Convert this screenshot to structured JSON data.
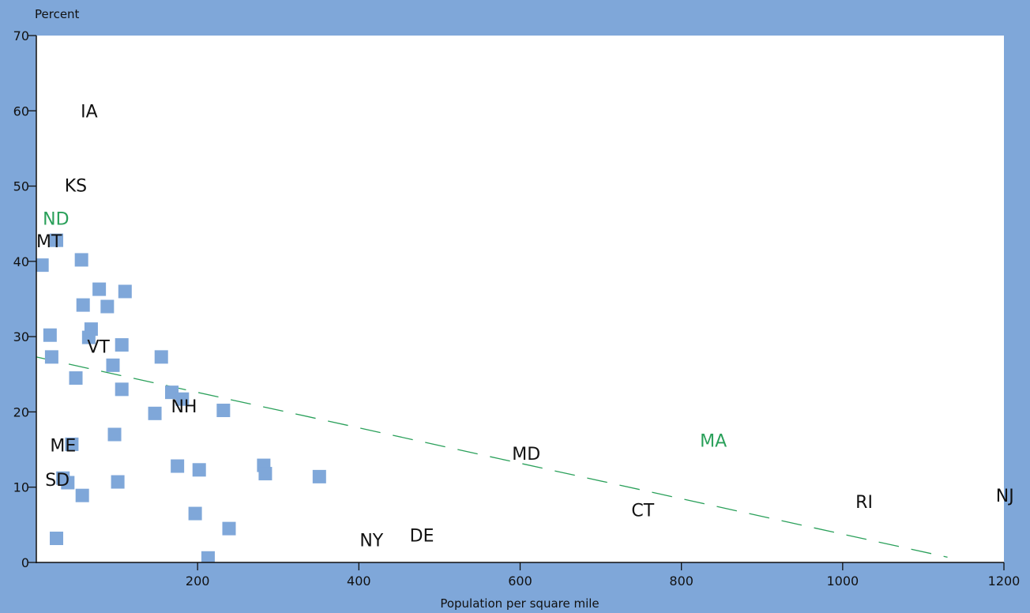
{
  "chart_data": {
    "type": "scatter",
    "title": "",
    "xlabel": "Population per square mile",
    "ylabel": "Percent",
    "xlim": [
      0,
      1200
    ],
    "ylim": [
      0,
      70
    ],
    "xticks": [
      200,
      400,
      600,
      800,
      1000,
      1200
    ],
    "yticks": [
      0,
      10,
      20,
      30,
      40,
      50,
      60,
      70
    ],
    "grid": false,
    "colors": {
      "plot_background": "#ffffff",
      "frame_background": "#7fa7d9",
      "marker": "#7fa7d9",
      "trend_line": "#2aa05a",
      "highlight_label": "#2aa05a",
      "label": "#111111"
    },
    "points": [
      {
        "x": 7,
        "y": 39.5
      },
      {
        "x": 25,
        "y": 42.8
      },
      {
        "x": 17,
        "y": 30.2
      },
      {
        "x": 19,
        "y": 27.3
      },
      {
        "x": 49,
        "y": 24.5
      },
      {
        "x": 56,
        "y": 40.2
      },
      {
        "x": 58,
        "y": 34.2
      },
      {
        "x": 78,
        "y": 36.3
      },
      {
        "x": 88,
        "y": 34.0
      },
      {
        "x": 110,
        "y": 36.0
      },
      {
        "x": 68,
        "y": 31.0
      },
      {
        "x": 65,
        "y": 29.9
      },
      {
        "x": 106,
        "y": 28.9
      },
      {
        "x": 95,
        "y": 26.2
      },
      {
        "x": 155,
        "y": 27.3
      },
      {
        "x": 106,
        "y": 23.0
      },
      {
        "x": 168,
        "y": 22.6
      },
      {
        "x": 181,
        "y": 21.7
      },
      {
        "x": 147,
        "y": 19.8
      },
      {
        "x": 232,
        "y": 20.2
      },
      {
        "x": 97,
        "y": 17.0
      },
      {
        "x": 44,
        "y": 15.7
      },
      {
        "x": 33,
        "y": 11.2
      },
      {
        "x": 39,
        "y": 10.6
      },
      {
        "x": 57,
        "y": 8.9
      },
      {
        "x": 101,
        "y": 10.7
      },
      {
        "x": 175,
        "y": 12.8
      },
      {
        "x": 202,
        "y": 12.3
      },
      {
        "x": 282,
        "y": 12.9
      },
      {
        "x": 284,
        "y": 11.8
      },
      {
        "x": 351,
        "y": 11.4
      },
      {
        "x": 197,
        "y": 6.5
      },
      {
        "x": 239,
        "y": 4.5
      },
      {
        "x": 213,
        "y": 0.6
      },
      {
        "x": 25,
        "y": 3.2
      }
    ],
    "labels": [
      {
        "text": "IA",
        "x": 55,
        "y": 60.0,
        "highlight": false
      },
      {
        "text": "KS",
        "x": 35,
        "y": 50.1,
        "highlight": false
      },
      {
        "text": "ND",
        "x": 8,
        "y": 45.7,
        "highlight": true
      },
      {
        "text": "MT",
        "x": 0,
        "y": 42.7,
        "highlight": false
      },
      {
        "text": "VT",
        "x": 63,
        "y": 28.7,
        "highlight": false
      },
      {
        "text": "NH",
        "x": 167,
        "y": 20.8,
        "highlight": false
      },
      {
        "text": "ME",
        "x": 17,
        "y": 15.6,
        "highlight": false
      },
      {
        "text": "SD",
        "x": 11,
        "y": 11.0,
        "highlight": false
      },
      {
        "text": "MD",
        "x": 590,
        "y": 14.5,
        "highlight": false
      },
      {
        "text": "MA",
        "x": 823,
        "y": 16.2,
        "highlight": true
      },
      {
        "text": "CT",
        "x": 738,
        "y": 7.0,
        "highlight": false
      },
      {
        "text": "RI",
        "x": 1016,
        "y": 8.1,
        "highlight": false
      },
      {
        "text": "NJ",
        "x": 1190,
        "y": 8.9,
        "highlight": false
      },
      {
        "text": "NY",
        "x": 401,
        "y": 3.0,
        "highlight": false
      },
      {
        "text": "DE",
        "x": 463,
        "y": 3.6,
        "highlight": false
      }
    ],
    "trend_line": {
      "x": [
        0,
        1130
      ],
      "y": [
        27.3,
        0.7
      ],
      "style": "dashed"
    }
  }
}
